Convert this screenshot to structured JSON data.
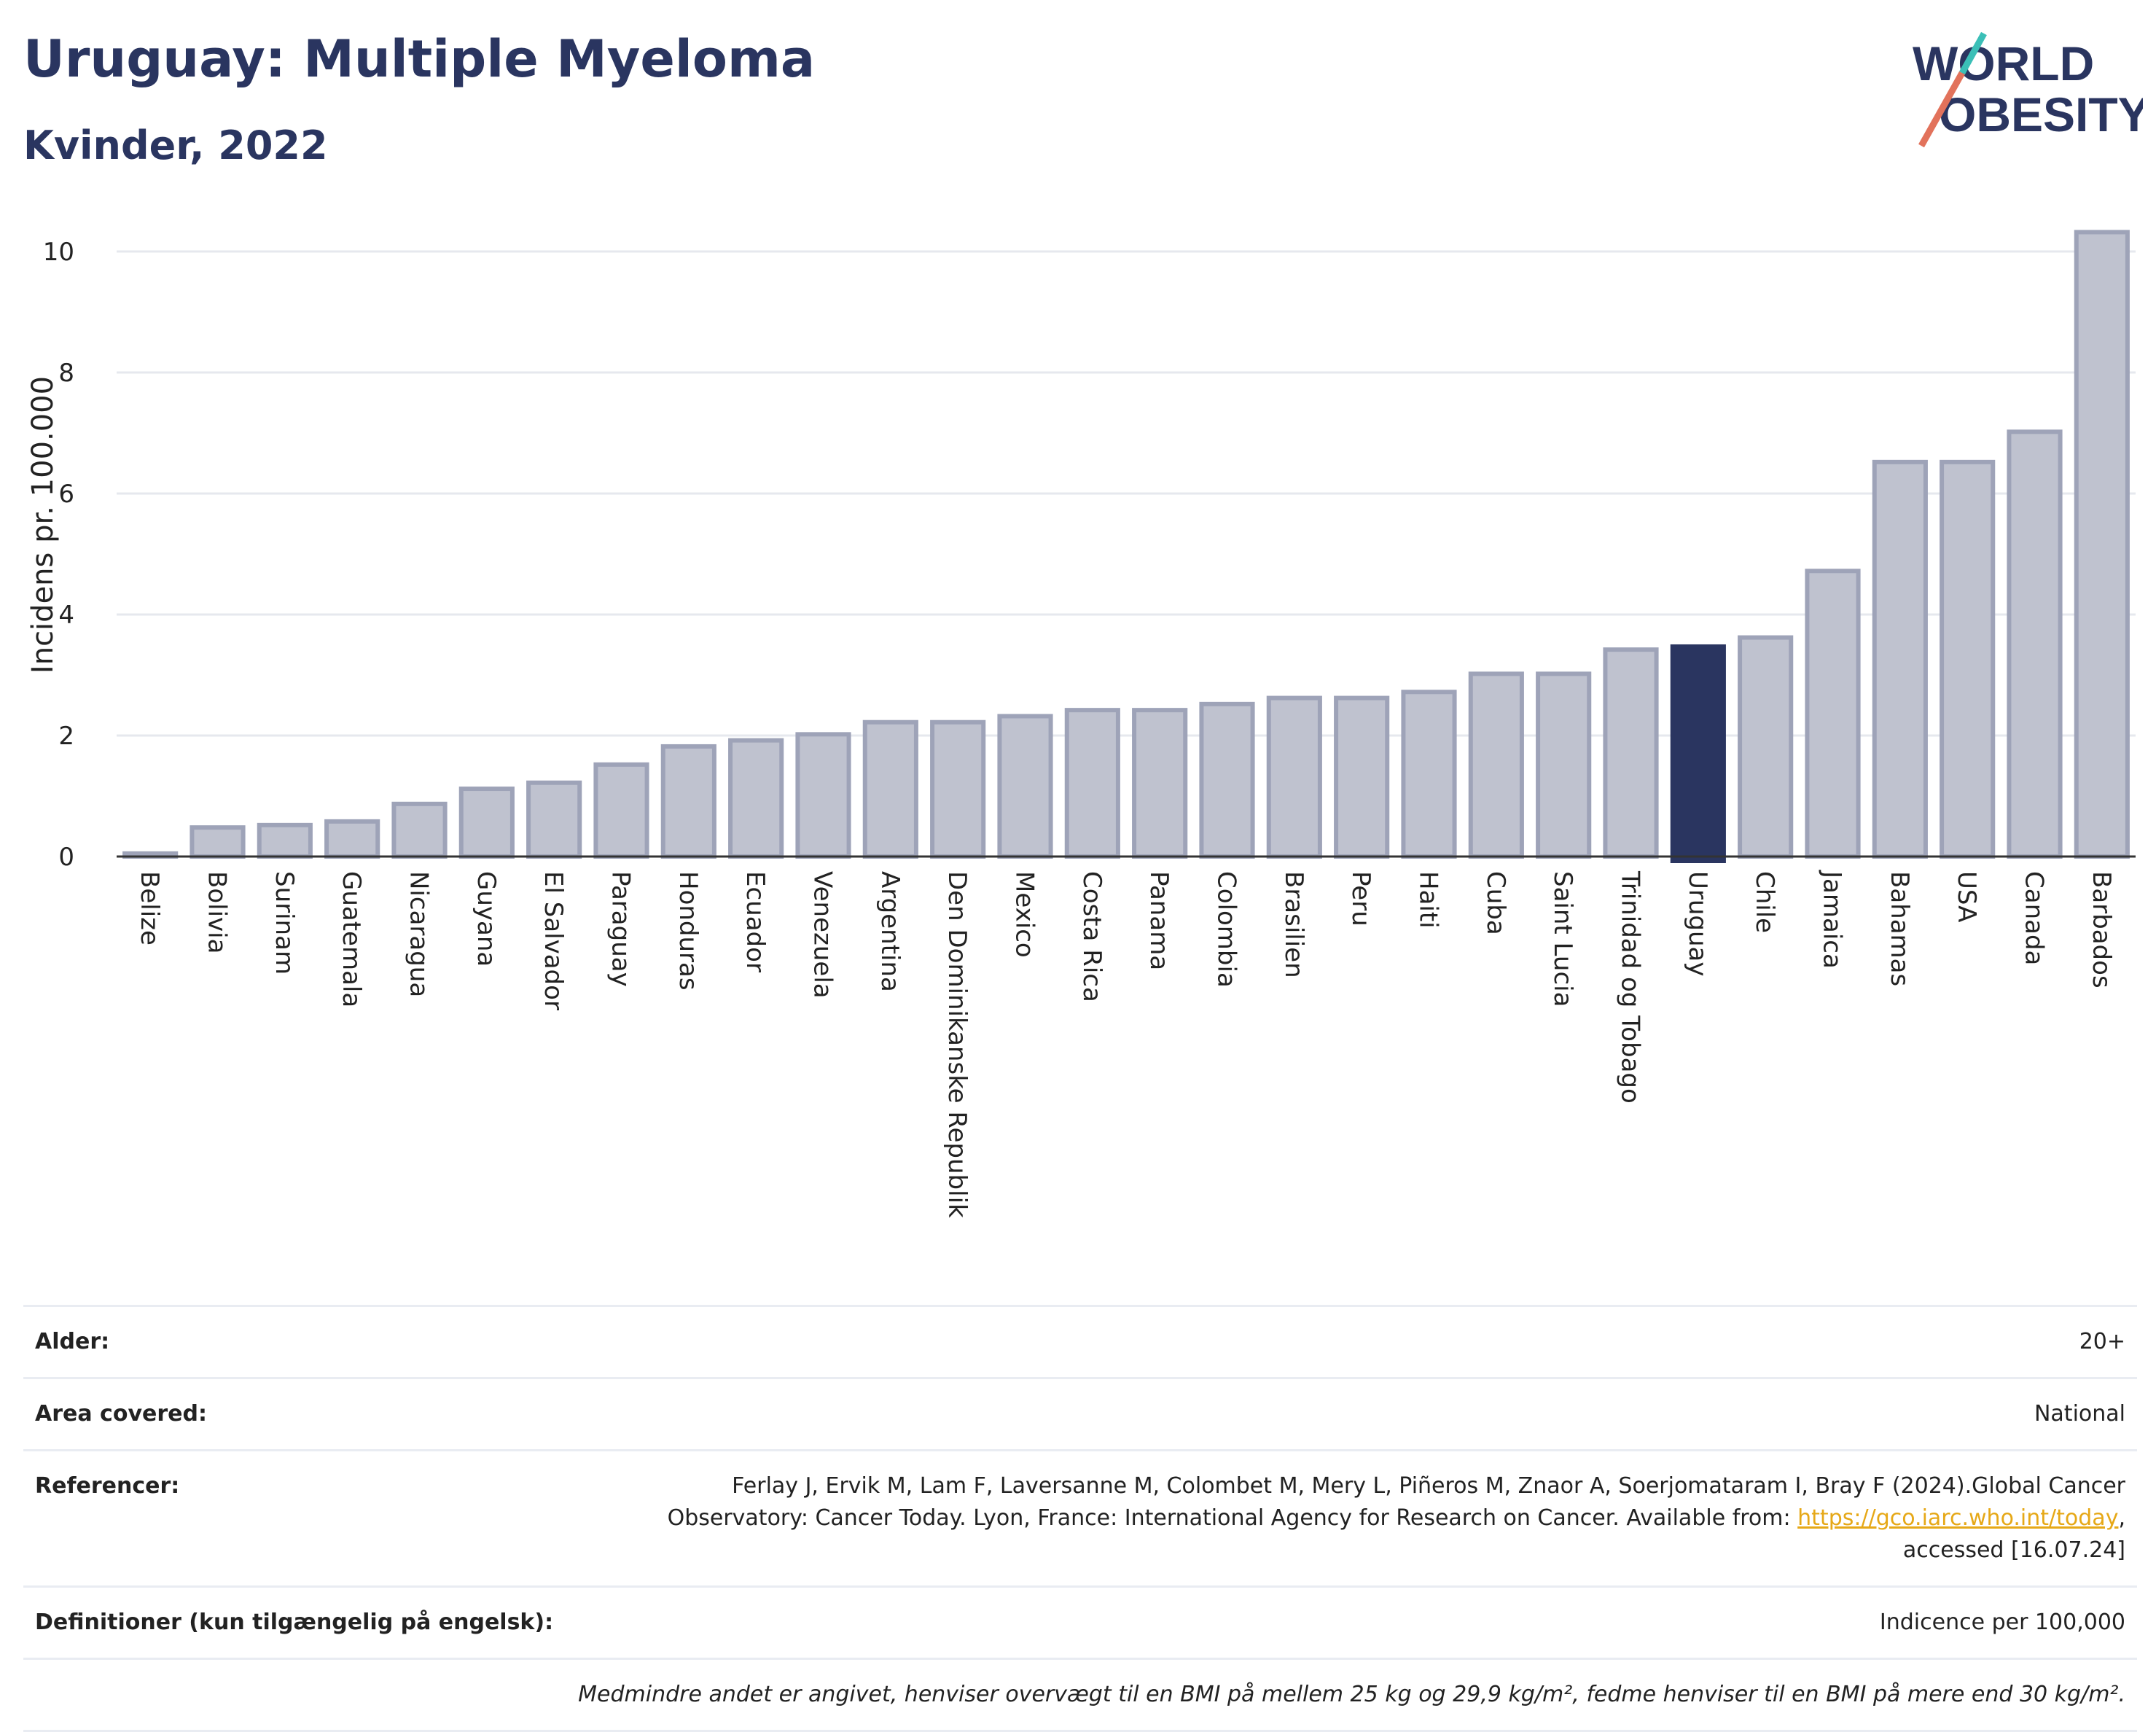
{
  "title": "Uruguay: Multiple Myeloma",
  "subtitle": "Kvinder, 2022",
  "logo": {
    "line1": "WORLD",
    "line2": "OBESITY"
  },
  "colors": {
    "bar": "#bfc2cf",
    "bar_border": "#9ea3b8",
    "highlight": "#2a3560",
    "title": "#2a3560",
    "link": "#e6a817"
  },
  "chart_data": {
    "type": "bar",
    "ylabel": "Incidens pr. 100.000",
    "xlabel": "",
    "ylim": [
      0,
      10.5
    ],
    "yticks": [
      0,
      2,
      4,
      6,
      8,
      10
    ],
    "grid": true,
    "highlight": "Uruguay",
    "categories": [
      "Belize",
      "Bolivia",
      "Surinam",
      "Guatemala",
      "Nicaragua",
      "Guyana",
      "El Salvador",
      "Paraguay",
      "Honduras",
      "Ecuador",
      "Venezuela",
      "Argentina",
      "Den Dominikanske Republik",
      "Mexico",
      "Costa Rica",
      "Panama",
      "Colombia",
      "Brasilien",
      "Peru",
      "Haiti",
      "Cuba",
      "Saint Lucia",
      "Trinidad og Tobago",
      "Uruguay",
      "Chile",
      "Jamaica",
      "Bahamas",
      "USA",
      "Canada",
      "Barbados"
    ],
    "values": [
      0.05,
      0.48,
      0.52,
      0.58,
      0.87,
      1.12,
      1.22,
      1.52,
      1.82,
      1.92,
      2.02,
      2.22,
      2.22,
      2.32,
      2.42,
      2.42,
      2.52,
      2.62,
      2.62,
      2.72,
      3.02,
      3.02,
      3.42,
      3.47,
      3.62,
      4.72,
      6.52,
      6.52,
      7.02,
      10.32
    ]
  },
  "info": {
    "age_label": "Alder:",
    "age_value": "20+",
    "area_label": "Area covered:",
    "area_value": "National",
    "ref_label": "Referencer:",
    "ref_line1": "Ferlay J, Ervik M, Lam F, Laversanne M, Colombet M, Mery L, Piñeros M, Znaor A, Soerjomataram I, Bray F (2024).Global Cancer",
    "ref_line2": "Observatory: Cancer Today. Lyon, France: International Agency for Research on Cancer. Available from: ",
    "ref_link": "https://gco.iarc.who.int/today",
    "ref_line3": ",",
    "ref_line4": "accessed [16.07.24]",
    "def_label": "Definitioner (kun tilgængelig på engelsk):",
    "def_value": "Indicence per 100,000",
    "footnote": "Medmindre andet er angivet, henviser overvægt til en BMI på mellem 25 kg og 29,9 kg/m², fedme henviser til en BMI på mere end 30 kg/m²."
  }
}
